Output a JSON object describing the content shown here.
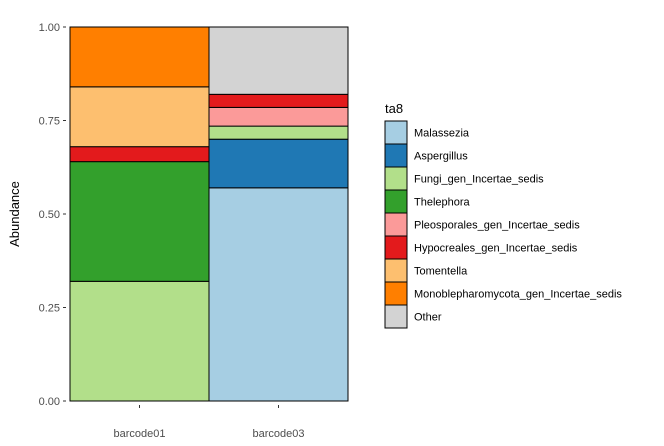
{
  "chart_data": {
    "type": "bar",
    "stacked": true,
    "xlabel": "",
    "ylabel": "Abundance",
    "ylim": [
      0,
      1
    ],
    "y_ticks": [
      "0.00",
      "0.25",
      "0.50",
      "0.75",
      "1.00"
    ],
    "categories": [
      "barcode01",
      "barcode03"
    ],
    "legend_title": "ta8",
    "legend_position": "right",
    "grid": false,
    "series": [
      {
        "name": "Malassezia",
        "color": "#A6CEE3",
        "values": [
          0.0,
          0.57
        ]
      },
      {
        "name": "Aspergillus",
        "color": "#1F78B4",
        "values": [
          0.0,
          0.13
        ]
      },
      {
        "name": "Fungi_gen_Incertae_sedis",
        "color": "#B2DF8A",
        "values": [
          0.32,
          0.035
        ]
      },
      {
        "name": "Thelephora",
        "color": "#33A02C",
        "values": [
          0.32,
          0.0
        ]
      },
      {
        "name": "Pleosporales_gen_Incertae_sedis",
        "color": "#FB9A99",
        "values": [
          0.0,
          0.05
        ]
      },
      {
        "name": "Hypocreales_gen_Incertae_sedis",
        "color": "#E31A1C",
        "values": [
          0.04,
          0.035
        ]
      },
      {
        "name": "Tomentella",
        "color": "#FDBF6F",
        "values": [
          0.16,
          0.0
        ]
      },
      {
        "name": "Monoblepharomycota_gen_Incertae_sedis",
        "color": "#FF7F00",
        "values": [
          0.16,
          0.0
        ]
      },
      {
        "name": "Other",
        "color": "#D3D3D3",
        "values": [
          0.0,
          0.18
        ]
      }
    ]
  }
}
